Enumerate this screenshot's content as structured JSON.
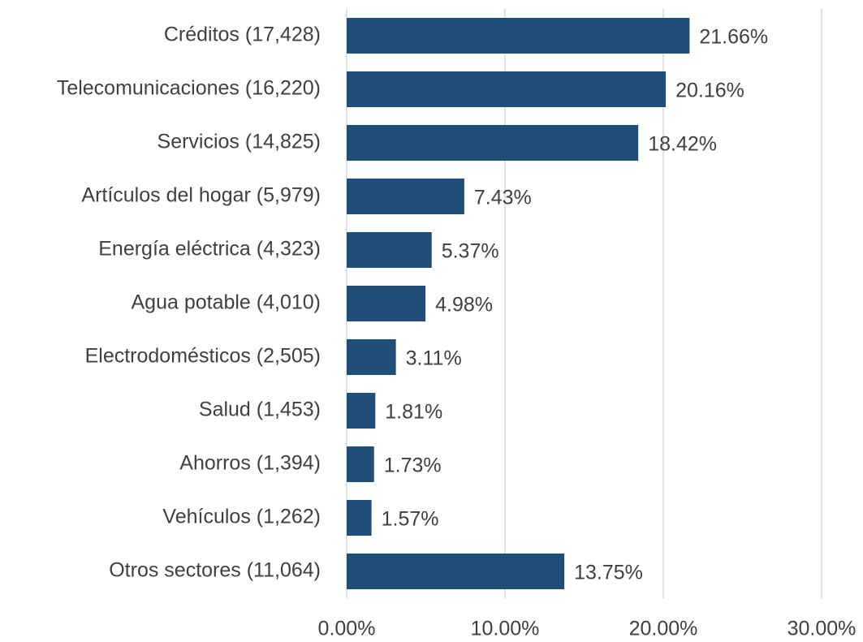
{
  "chart_data": {
    "type": "hbar",
    "categories": [
      "Créditos (17,428)",
      "Telecomunicaciones (16,220)",
      "Servicios (14,825)",
      "Artículos del hogar (5,979)",
      "Energía eléctrica (4,323)",
      "Agua potable (4,010)",
      "Electrodomésticos (2,505)",
      "Salud (1,453)",
      "Ahorros (1,394)",
      "Vehículos (1,262)",
      "Otros sectores (11,064)"
    ],
    "values": [
      21.66,
      20.16,
      18.42,
      7.43,
      5.37,
      4.98,
      3.11,
      1.81,
      1.73,
      1.57,
      13.75
    ],
    "value_labels": [
      "21.66%",
      "20.16%",
      "18.42%",
      "7.43%",
      "5.37%",
      "4.98%",
      "3.11%",
      "1.81%",
      "1.73%",
      "1.57%",
      "13.75%"
    ],
    "color": "#1f4e79",
    "xlim": [
      0,
      30
    ],
    "xticks": [
      {
        "value": 0,
        "label": "0.00%"
      },
      {
        "value": 10,
        "label": "10.00%"
      },
      {
        "value": 20,
        "label": "20.00%"
      },
      {
        "value": 30,
        "label": "30.00%"
      }
    ],
    "grid": true
  }
}
